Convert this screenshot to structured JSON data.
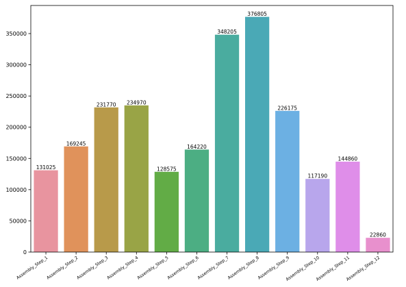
{
  "chart_data": {
    "type": "bar",
    "title": "",
    "xlabel": "",
    "ylabel": "",
    "categories": [
      "Assembly_Step_1",
      "Assembly_Step_2",
      "Assembly_Step_3",
      "Assembly_Step_4",
      "Assembly_Step_5",
      "Assembly_Step_6",
      "Assembly_Step_7",
      "Assembly_Step_8",
      "Assembly_Step_9",
      "Assembly_Step_10",
      "Assembly_Step_11",
      "Assembly_Step_12"
    ],
    "values": [
      131025,
      169245,
      231770,
      234970,
      128575,
      164220,
      348205,
      376805,
      226175,
      117190,
      144860,
      22860
    ],
    "colors": [
      "#e8949f",
      "#e0925b",
      "#b89a4a",
      "#99a446",
      "#62ac46",
      "#4cae83",
      "#4aac9f",
      "#4aa9b6",
      "#6cb0e3",
      "#b8a6ec",
      "#df8ee9",
      "#e890cd"
    ],
    "ylim": [
      0,
      395000
    ],
    "yticks": [
      0,
      50000,
      100000,
      150000,
      200000,
      250000,
      300000,
      350000
    ],
    "grid": false,
    "legend": "none"
  }
}
